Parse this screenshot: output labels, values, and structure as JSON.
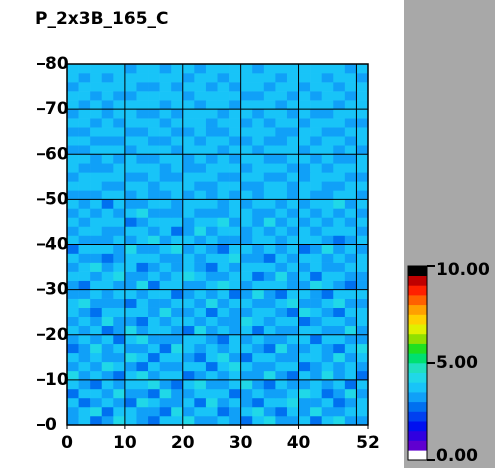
{
  "chart_data": {
    "type": "heatmap",
    "title": "P_2x3B_165_C",
    "xlim": [
      0,
      52
    ],
    "xticks": [
      0,
      10,
      20,
      30,
      40,
      52
    ],
    "xgrid": [
      10,
      20,
      30,
      40,
      50
    ],
    "ylim": [
      0,
      80
    ],
    "yticks": [
      0,
      10,
      20,
      30,
      40,
      50,
      60,
      70,
      80
    ],
    "x": [
      1,
      3,
      5,
      7,
      9,
      11,
      13,
      15,
      17,
      19,
      21,
      23,
      25,
      27,
      29,
      31,
      33,
      35,
      37,
      39,
      41,
      43,
      45,
      47,
      49,
      51
    ],
    "y": [
      1,
      3,
      5,
      7,
      9,
      11,
      13,
      15,
      17,
      19,
      21,
      23,
      25,
      27,
      29,
      31,
      33,
      35,
      37,
      39,
      41,
      43,
      45,
      47,
      49,
      51,
      53,
      55,
      57,
      59,
      61,
      63,
      65,
      67,
      69,
      71,
      73,
      75,
      77,
      79
    ],
    "zlim": [
      0,
      10
    ],
    "colorbar_ticks": [
      {
        "value": 0,
        "label": "0.00"
      },
      {
        "value": 5,
        "label": "5.00"
      },
      {
        "value": 10,
        "label": "10.00"
      }
    ],
    "colormap": [
      "#ffffff",
      "#6000d0",
      "#3000e0",
      "#0010f0",
      "#0040f0",
      "#0070f0",
      "#10a0f8",
      "#18c4f8",
      "#20d8e8",
      "#20e0c0",
      "#00e070",
      "#20e020",
      "#90e000",
      "#e0f000",
      "#ffd000",
      "#ffa000",
      "#ff6000",
      "#ff2000",
      "#c00000",
      "#000000"
    ],
    "z": [
      [
        3.4,
        3.8,
        2.9,
        3.3,
        4.1,
        3.6,
        3.1,
        2.8,
        3.7,
        3.5,
        4.3,
        3.2,
        3.0,
        3.9,
        3.4,
        2.6,
        3.6,
        4.0,
        3.3,
        3.1,
        3.8,
        2.9,
        3.5,
        4.2,
        3.4,
        3.0
      ],
      [
        3.1,
        3.5,
        4.2,
        2.7,
        3.6,
        3.9,
        3.3,
        3.4,
        2.9,
        4.0,
        3.2,
        3.7,
        3.5,
        2.8,
        3.3,
        3.8,
        4.1,
        3.1,
        2.6,
        3.6,
        3.4,
        4.3,
        3.0,
        3.2,
        3.7,
        3.5
      ],
      [
        3.7,
        2.8,
        3.3,
        3.9,
        3.1,
        2.5,
        4.0,
        3.6,
        3.2,
        3.4,
        3.8,
        2.9,
        4.2,
        3.3,
        3.6,
        3.1,
        2.9,
        3.5,
        3.8,
        4.1,
        3.0,
        3.3,
        3.7,
        2.7,
        3.2,
        3.9
      ],
      [
        2.9,
        3.6,
        3.8,
        3.2,
        4.4,
        3.4,
        3.0,
        2.7,
        4.1,
        3.3,
        3.1,
        3.5,
        3.6,
        3.9,
        2.8,
        3.4,
        3.7,
        3.2,
        3.0,
        3.5,
        4.0,
        3.6,
        2.9,
        3.4,
        4.1,
        3.2
      ],
      [
        3.5,
        3.2,
        2.6,
        3.7,
        3.3,
        3.8,
        3.6,
        4.2,
        3.0,
        2.9,
        3.7,
        4.0,
        3.1,
        3.4,
        3.5,
        4.3,
        3.0,
        2.8,
        3.6,
        3.2,
        3.3,
        3.9,
        3.4,
        3.8,
        2.9,
        3.6
      ],
      [
        4.0,
        3.3,
        3.5,
        3.0,
        2.8,
        3.6,
        4.1,
        3.2,
        3.5,
        3.8,
        2.7,
        3.3,
        3.9,
        3.0,
        3.7,
        3.2,
        3.4,
        4.0,
        3.3,
        2.9,
        3.6,
        3.1,
        4.2,
        3.3,
        3.5,
        2.8
      ],
      [
        3.2,
        3.9,
        3.1,
        4.3,
        3.5,
        3.0,
        2.9,
        3.7,
        3.4,
        3.1,
        3.6,
        3.8,
        2.8,
        3.5,
        4.0,
        3.6,
        3.1,
        3.3,
        3.9,
        3.7,
        2.7,
        3.4,
        3.6,
        3.0,
        3.8,
        3.3
      ],
      [
        3.6,
        3.0,
        3.7,
        3.4,
        3.2,
        4.0,
        3.5,
        2.8,
        3.8,
        3.6,
        3.3,
        2.9,
        3.5,
        4.1,
        3.1,
        2.7,
        3.8,
        3.6,
        3.2,
        3.4,
        3.9,
        3.5,
        3.1,
        4.0,
        3.2,
        3.7
      ],
      [
        2.8,
        3.4,
        4.0,
        3.1,
        3.9,
        3.3,
        3.2,
        3.6,
        2.7,
        4.2,
        3.5,
        3.1,
        3.7,
        3.3,
        3.6,
        3.9,
        3.2,
        2.9,
        4.0,
        3.1,
        3.4,
        3.7,
        3.3,
        2.9,
        3.6,
        4.1
      ],
      [
        3.3,
        3.7,
        3.2,
        3.6,
        2.9,
        3.5,
        4.0,
        3.1,
        3.4,
        3.0,
        3.8,
        3.6,
        3.2,
        2.9,
        3.8,
        3.4,
        3.6,
        3.3,
        3.0,
        3.8,
        3.5,
        2.8,
        3.9,
        3.5,
        3.1,
        3.4
      ],
      [
        3.9,
        3.1,
        3.6,
        2.8,
        3.4,
        4.2,
        3.3,
        3.7,
        3.5,
        3.2,
        2.9,
        4.0,
        3.4,
        3.6,
        3.0,
        3.5,
        2.8,
        3.9,
        3.4,
        3.2,
        3.7,
        3.6,
        3.0,
        3.3,
        4.3,
        3.1
      ],
      [
        3.0,
        3.6,
        3.4,
        4.1,
        3.2,
        3.1,
        2.7,
        3.9,
        3.3,
        3.7,
        3.6,
        3.2,
        3.8,
        3.1,
        3.4,
        4.1,
        3.5,
        3.0,
        3.7,
        3.5,
        2.9,
        3.3,
        3.8,
        3.6,
        3.0,
        3.5
      ],
      [
        3.5,
        3.3,
        2.9,
        3.5,
        3.8,
        3.6,
        3.9,
        3.0,
        4.2,
        3.4,
        3.1,
        3.5,
        2.9,
        3.7,
        3.3,
        3.0,
        3.6,
        3.8,
        3.2,
        2.8,
        4.0,
        3.5,
        3.2,
        2.9,
        3.7,
        3.8
      ],
      [
        3.7,
        4.0,
        3.2,
        3.3,
        3.0,
        2.8,
        3.5,
        3.4,
        3.1,
        3.9,
        3.6,
        3.3,
        4.1,
        3.2,
        3.9,
        3.6,
        3.1,
        3.4,
        3.6,
        4.0,
        3.3,
        3.1,
        3.6,
        4.1,
        3.3,
        3.0
      ],
      [
        3.1,
        3.4,
        3.8,
        3.0,
        3.7,
        3.9,
        3.2,
        3.6,
        3.5,
        2.7,
        3.4,
        3.8,
        3.3,
        3.5,
        2.8,
        3.4,
        4.0,
        3.2,
        2.9,
        3.6,
        3.8,
        3.4,
        2.7,
        3.5,
        3.9,
        3.6
      ],
      [
        3.4,
        2.9,
        3.5,
        3.9,
        3.3,
        3.4,
        4.0,
        2.9,
        3.7,
        3.5,
        3.2,
        3.0,
        3.6,
        4.0,
        3.5,
        3.2,
        3.5,
        3.7,
        3.5,
        3.1,
        3.2,
        4.0,
        3.5,
        3.2,
        2.8,
        3.4
      ],
      [
        3.8,
        3.5,
        3.1,
        3.6,
        4.1,
        3.0,
        3.3,
        3.8,
        3.2,
        3.6,
        4.0,
        3.7,
        3.1,
        3.3,
        3.6,
        3.9,
        2.9,
        3.3,
        4.1,
        3.4,
        3.6,
        2.9,
        3.8,
        3.7,
        3.4,
        3.2
      ],
      [
        3.2,
        3.7,
        4.0,
        3.2,
        3.5,
        3.7,
        2.8,
        3.4,
        3.9,
        3.1,
        3.5,
        3.4,
        2.8,
        3.8,
        3.2,
        3.5,
        3.7,
        3.6,
        3.0,
        3.8,
        3.1,
        3.5,
        3.3,
        3.0,
        3.6,
        3.9
      ],
      [
        3.6,
        3.1,
        3.4,
        2.9,
        3.2,
        3.5,
        3.8,
        3.5,
        3.0,
        3.4,
        3.9,
        3.1,
        3.7,
        3.5,
        4.1,
        3.1,
        3.4,
        2.8,
        3.6,
        3.3,
        3.9,
        3.7,
        3.1,
        3.6,
        3.2,
        3.5
      ],
      [
        2.9,
        3.8,
        3.6,
        3.7,
        3.4,
        4.0,
        3.3,
        3.1,
        3.6,
        4.1,
        3.0,
        3.6,
        3.4,
        2.9,
        3.6,
        3.7,
        3.2,
        3.9,
        3.4,
        3.5,
        2.8,
        3.2,
        4.0,
        3.4,
        3.8,
        3.0
      ],
      [
        3.5,
        3.3,
        3.0,
        3.4,
        3.9,
        3.2,
        3.5,
        4.0,
        3.3,
        3.5,
        3.7,
        3.2,
        3.9,
        3.3,
        3.1,
        3.4,
        3.8,
        3.5,
        3.1,
        3.9,
        3.5,
        3.6,
        3.4,
        2.9,
        3.3,
        3.7
      ],
      [
        3.3,
        3.6,
        3.9,
        3.1,
        3.0,
        3.6,
        3.7,
        3.2,
        3.8,
        2.9,
        3.4,
        4.0,
        3.2,
        3.6,
        3.8,
        3.0,
        3.5,
        3.2,
        3.8,
        3.2,
        3.7,
        3.0,
        3.6,
        3.9,
        3.5,
        3.4
      ],
      [
        3.7,
        3.0,
        3.5,
        3.8,
        3.6,
        2.9,
        3.4,
        3.6,
        3.5,
        3.7,
        3.1,
        3.5,
        3.6,
        4.0,
        3.3,
        3.6,
        3.1,
        4.0,
        3.3,
        3.6,
        3.4,
        3.9,
        3.2,
        3.5,
        3.1,
        3.8
      ],
      [
        3.1,
        3.9,
        3.3,
        3.5,
        3.2,
        3.8,
        4.1,
        3.3,
        3.0,
        3.4,
        3.8,
        3.3,
        3.0,
        3.4,
        3.7,
        3.9,
        3.4,
        3.1,
        3.7,
        3.0,
        3.5,
        3.3,
        3.8,
        3.3,
        3.7,
        3.2
      ],
      [
        3.6,
        3.4,
        3.7,
        2.9,
        3.8,
        3.4,
        3.1,
        3.7,
        3.9,
        3.2,
        3.5,
        3.8,
        3.7,
        3.1,
        3.5,
        3.2,
        3.9,
        3.6,
        3.2,
        3.8,
        3.1,
        3.6,
        3.5,
        4.0,
        3.4,
        3.6
      ],
      [
        3.4,
        3.2,
        3.1,
        3.7,
        3.5,
        3.1,
        3.6,
        3.4,
        3.2,
        3.8,
        3.3,
        3.6,
        3.4,
        3.8,
        3.0,
        3.6,
        3.3,
        3.5,
        3.9,
        3.4,
        3.8,
        3.2,
        3.1,
        3.6,
        3.8,
        3.3
      ],
      [
        3.8,
        3.6,
        3.5,
        3.3,
        3.0,
        3.7,
        3.9,
        3.0,
        3.6,
        3.5,
        3.9,
        3.1,
        3.3,
        3.6,
        3.9,
        3.4,
        3.0,
        3.8,
        3.5,
        3.1,
        3.6,
        3.9,
        3.4,
        3.2,
        3.5,
        3.7
      ],
      [
        3.2,
        3.5,
        3.8,
        3.6,
        3.9,
        3.3,
        3.2,
        3.8,
        3.4,
        3.1,
        3.6,
        3.7,
        3.9,
        3.2,
        3.4,
        3.8,
        3.6,
        3.3,
        3.1,
        3.7,
        3.4,
        3.5,
        3.7,
        3.8,
        3.1,
        3.4
      ],
      [
        3.5,
        3.1,
        3.4,
        3.2,
        3.6,
        3.8,
        3.5,
        3.6,
        3.1,
        3.9,
        3.4,
        3.2,
        3.5,
        3.7,
        3.6,
        3.1,
        3.7,
        3.9,
        3.6,
        3.3,
        3.2,
        3.8,
        3.3,
        3.5,
        3.9,
        3.6
      ],
      [
        3.9,
        3.7,
        3.2,
        3.8,
        3.3,
        3.5,
        3.0,
        3.4,
        3.7,
        3.6,
        3.2,
        3.8,
        3.1,
        3.5,
        3.3,
        3.7,
        3.5,
        3.2,
        3.4,
        3.9,
        3.7,
        3.3,
        3.6,
        3.1,
        3.4,
        3.8
      ],
      [
        3.3,
        3.4,
        3.9,
        3.5,
        3.7,
        3.2,
        3.6,
        3.9,
        3.5,
        3.3,
        3.7,
        3.5,
        3.8,
        3.3,
        3.9,
        3.5,
        3.2,
        3.6,
        3.8,
        3.5,
        3.3,
        3.6,
        3.9,
        3.4,
        3.7,
        3.2
      ],
      [
        3.6,
        3.8,
        3.3,
        3.1,
        3.4,
        3.9,
        3.7,
        3.3,
        3.2,
        3.8,
        3.5,
        3.3,
        3.6,
        3.9,
        3.2,
        3.4,
        3.8,
        3.4,
        3.2,
        3.6,
        3.9,
        3.1,
        3.5,
        3.7,
        3.3,
        3.5
      ],
      [
        3.4,
        3.2,
        3.7,
        3.6,
        3.8,
        3.4,
        3.3,
        3.5,
        3.9,
        3.4,
        3.1,
        3.7,
        3.4,
        3.2,
        3.6,
        3.9,
        3.5,
        3.7,
        3.3,
        3.4,
        3.6,
        3.8,
        3.4,
        3.2,
        3.8,
        3.6
      ],
      [
        3.7,
        3.5,
        3.4,
        3.9,
        3.2,
        3.6,
        3.8,
        3.7,
        3.4,
        3.6,
        3.9,
        3.5,
        3.2,
        3.7,
        3.5,
        3.3,
        3.6,
        3.2,
        3.8,
        3.7,
        3.3,
        3.5,
        3.7,
        3.9,
        3.4,
        3.3
      ],
      [
        3.2,
        3.9,
        3.6,
        3.4,
        3.5,
        3.8,
        3.3,
        3.4,
        3.7,
        3.2,
        3.5,
        3.8,
        3.6,
        3.4,
        3.8,
        3.6,
        3.4,
        3.9,
        3.5,
        3.2,
        3.8,
        3.4,
        3.3,
        3.6,
        3.7,
        3.9
      ],
      [
        3.5,
        3.4,
        3.8,
        3.3,
        3.7,
        3.5,
        3.6,
        3.9,
        3.3,
        3.5,
        3.7,
        3.3,
        3.9,
        3.5,
        3.3,
        3.8,
        3.7,
        3.5,
        3.3,
        3.6,
        3.5,
        3.7,
        3.8,
        3.4,
        3.5,
        3.6
      ],
      [
        3.8,
        3.6,
        3.3,
        3.7,
        3.4,
        3.3,
        3.9,
        3.5,
        3.6,
        3.8,
        3.4,
        3.6,
        3.5,
        3.7,
        3.6,
        3.4,
        3.3,
        3.6,
        3.9,
        3.4,
        3.7,
        3.3,
        3.5,
        3.8,
        3.3,
        3.7
      ],
      [
        3.4,
        3.7,
        3.5,
        3.6,
        3.8,
        3.6,
        3.4,
        3.3,
        3.8,
        3.4,
        3.6,
        3.9,
        3.3,
        3.6,
        3.4,
        3.7,
        3.8,
        3.4,
        3.6,
        3.8,
        3.4,
        3.9,
        3.6,
        3.4,
        3.8,
        3.5
      ],
      [
        3.6,
        3.3,
        3.8,
        3.4,
        3.5,
        3.9,
        3.7,
        3.6,
        3.5,
        3.7,
        3.3,
        3.5,
        3.8,
        3.4,
        3.9,
        3.5,
        3.6,
        3.8,
        3.4,
        3.5,
        3.6,
        3.5,
        3.4,
        3.7,
        3.6,
        3.4
      ],
      [
        3.5,
        3.8,
        3.6,
        3.5,
        3.7,
        3.4,
        3.5,
        3.8,
        3.4,
        3.6,
        3.8,
        3.4,
        3.6,
        3.8,
        3.5,
        3.6,
        3.4,
        3.7,
        3.5,
        3.7,
        3.8,
        3.6,
        3.7,
        3.5,
        3.4,
        3.9
      ]
    ]
  }
}
